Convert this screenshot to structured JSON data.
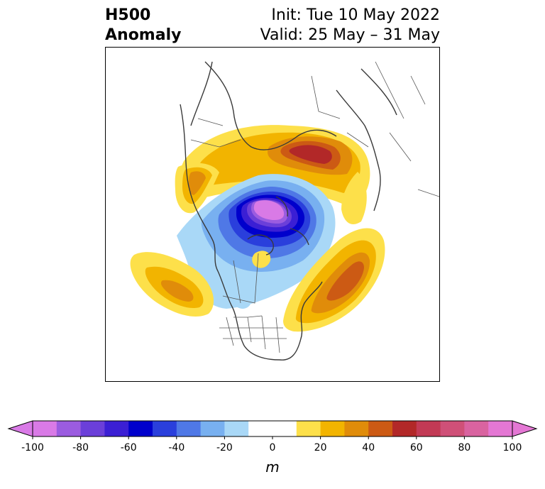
{
  "title": {
    "variable": "H500",
    "type": "Anomaly",
    "init": "Init: Tue 10 May 2022",
    "valid": "Valid: 25 May – 31 May"
  },
  "colorbar": {
    "unit": "m",
    "min": -100,
    "max": 100,
    "step": 10,
    "tick_values": [
      -100,
      -80,
      -60,
      -40,
      -20,
      0,
      20,
      40,
      60,
      80,
      100
    ],
    "tick_labels": [
      "-100",
      "-80",
      "-60",
      "-40",
      "-20",
      "0",
      "20",
      "40",
      "60",
      "80",
      "100"
    ],
    "extend": "both",
    "colors": [
      "#d97ae6",
      "#9b5ce0",
      "#6b3fd9",
      "#3b1fd4",
      "#0000cc",
      "#2a3fdc",
      "#4f78e6",
      "#78b0f0",
      "#a9d8f7",
      "#ffffff",
      "#ffffff",
      "#fde04a",
      "#f2b400",
      "#e08c0a",
      "#cc5a14",
      "#b22828",
      "#c23a55",
      "#cf5078",
      "#d963a0",
      "#e477d4"
    ],
    "under_color": "#d97ae6",
    "over_color": "#e477d4"
  },
  "map_data": {
    "region": "Northern Hemisphere polar stereographic",
    "features": [
      {
        "name": "Polar negative anomaly",
        "min_value": -100
      },
      {
        "name": "Siberia positive anomaly",
        "max_value": 60
      },
      {
        "name": "North Atlantic positive anomaly",
        "max_value": 50
      },
      {
        "name": "Northeast Pacific positive anomaly",
        "max_value": 40
      }
    ]
  }
}
